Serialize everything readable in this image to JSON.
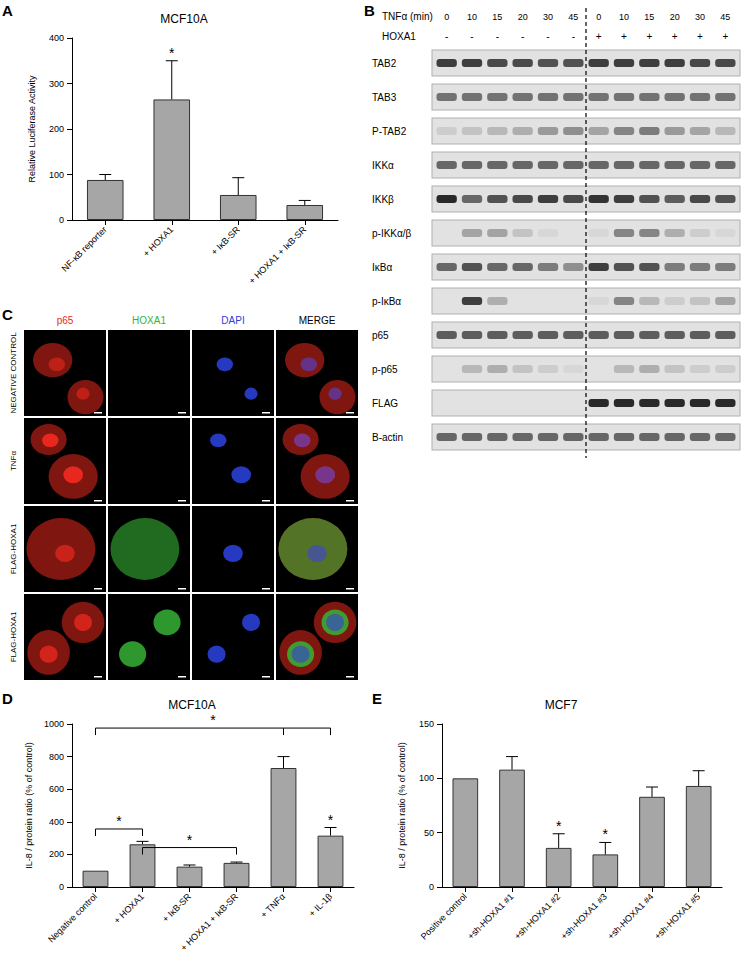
{
  "chart_data": [
    {
      "panel": "A",
      "type": "bar",
      "title": "MCF10A",
      "y_label": "Relative Luciferase Activity",
      "categories": [
        "NF-κB reporter",
        "+ HOXA1",
        "+ IκB-SR",
        "+ HOXA1 + IκB-SR"
      ],
      "values": [
        88,
        265,
        55,
        33
      ],
      "errors": [
        12,
        85,
        38,
        10
      ],
      "color": "#a6a6a6",
      "ylim": [
        0,
        400
      ],
      "yticks": [
        0,
        100,
        200,
        300,
        400
      ],
      "annotations": [
        {
          "category": "+ HOXA1",
          "text": "*"
        }
      ]
    },
    {
      "panel": "D",
      "type": "bar",
      "title": "MCF10A",
      "y_label": "IL-8 / protein ratio (% of control)",
      "categories": [
        "Negative control",
        "+ HOXA1",
        "+ IκB-SR",
        "+ HOXA1 + IκB-SR",
        "+ TNFα",
        "+ IL-1β"
      ],
      "values": [
        100,
        262,
        125,
        148,
        730,
        315
      ],
      "errors": [
        0,
        18,
        10,
        5,
        70,
        50
      ],
      "color": "#a6a6a6",
      "ylim": [
        0,
        1000
      ],
      "yticks": [
        0,
        200,
        400,
        600,
        800,
        1000
      ],
      "brackets": [
        {
          "categories": [
            "Negative control",
            "+ TNFα",
            "+ IL-1β"
          ],
          "y": 975,
          "text": "*"
        },
        {
          "categories": [
            "Negative control",
            "+ HOXA1"
          ],
          "y": 356,
          "text": "*"
        },
        {
          "categories": [
            "+ HOXA1",
            "+ HOXA1 + IκB-SR"
          ],
          "y": 242,
          "text": "*"
        }
      ],
      "annotations": [
        {
          "category": "+ IL-1β",
          "text": "*"
        }
      ]
    },
    {
      "panel": "E",
      "type": "bar",
      "title": "MCF7",
      "y_label": "IL-8 / protein ratio (% of control)",
      "categories": [
        "Positive control",
        "+sh-HOXA1 #1",
        "+sh-HOXA1 #2",
        "+sh-HOXA1 #3",
        "+sh-HOXA1 #4",
        "+sh-HOXA1 #5"
      ],
      "values": [
        100,
        108,
        36,
        30,
        83,
        93
      ],
      "errors": [
        0,
        12,
        13,
        11,
        9,
        14
      ],
      "color": "#a6a6a6",
      "ylim": [
        0,
        150
      ],
      "yticks": [
        0,
        50,
        100,
        150
      ],
      "annotations": [
        {
          "category": "+sh-HOXA1 #2",
          "text": "*"
        },
        {
          "category": "+sh-HOXA1 #3",
          "text": "*"
        }
      ]
    }
  ],
  "blot": {
    "panel": "B",
    "time_label": "TNFα (min)",
    "times": [
      0,
      10,
      15,
      20,
      30,
      45,
      0,
      10,
      15,
      20,
      30,
      45
    ],
    "hoxa1_label": "HOXA1",
    "hoxa1": [
      "-",
      "-",
      "-",
      "-",
      "-",
      "-",
      "+",
      "+",
      "+",
      "+",
      "+",
      "+"
    ],
    "rows": [
      {
        "label": "TAB2",
        "bands": [
          0.8,
          0.8,
          0.75,
          0.75,
          0.7,
          0.7,
          0.8,
          0.8,
          0.8,
          0.8,
          0.75,
          0.75
        ]
      },
      {
        "label": "TAB3",
        "bands": [
          0.55,
          0.55,
          0.55,
          0.55,
          0.55,
          0.55,
          0.55,
          0.55,
          0.55,
          0.55,
          0.55,
          0.55
        ]
      },
      {
        "label": "P-TAB2",
        "bands": [
          0.1,
          0.15,
          0.2,
          0.25,
          0.35,
          0.4,
          0.3,
          0.45,
          0.5,
          0.35,
          0.3,
          0.2
        ]
      },
      {
        "label": "IKKα",
        "bands": [
          0.6,
          0.6,
          0.6,
          0.6,
          0.6,
          0.6,
          0.6,
          0.6,
          0.6,
          0.6,
          0.6,
          0.6
        ]
      },
      {
        "label": "IKKβ",
        "bands": [
          0.9,
          0.6,
          0.7,
          0.75,
          0.8,
          0.75,
          0.85,
          0.8,
          0.7,
          0.65,
          0.75,
          0.7
        ]
      },
      {
        "label": "p-IKKα/β",
        "bands": [
          0,
          0.3,
          0.3,
          0.15,
          0.05,
          0,
          0.05,
          0.45,
          0.45,
          0.25,
          0.1,
          0.05
        ]
      },
      {
        "label": "IκBα",
        "bands": [
          0.6,
          0.7,
          0.6,
          0.6,
          0.5,
          0.4,
          0.8,
          0.7,
          0.7,
          0.5,
          0.5,
          0.5
        ]
      },
      {
        "label": "p-IκBα",
        "bands": [
          0,
          0.8,
          0.25,
          0,
          0,
          0,
          0.05,
          0.45,
          0.2,
          0.1,
          0.15,
          0.3
        ]
      },
      {
        "label": "p65",
        "bands": [
          0.65,
          0.65,
          0.65,
          0.65,
          0.65,
          0.65,
          0.65,
          0.65,
          0.65,
          0.65,
          0.65,
          0.65
        ]
      },
      {
        "label": "p-p65",
        "bands": [
          0,
          0.2,
          0.25,
          0.15,
          0.1,
          0.05,
          0,
          0.2,
          0.25,
          0.15,
          0.1,
          0.1
        ]
      },
      {
        "label": "FLAG",
        "bands": [
          0,
          0,
          0,
          0,
          0,
          0,
          0.9,
          0.9,
          0.9,
          0.9,
          0.9,
          0.9
        ]
      },
      {
        "label": "B-actin",
        "bands": [
          0.6,
          0.6,
          0.6,
          0.6,
          0.6,
          0.6,
          0.6,
          0.6,
          0.6,
          0.6,
          0.6,
          0.6
        ]
      }
    ]
  },
  "micrograph": {
    "panel": "C",
    "columns": [
      {
        "text": "p65",
        "color": "#e8281e"
      },
      {
        "text": "HOXA1",
        "color": "#36b336"
      },
      {
        "text": "DAPI",
        "color": "#2a3fd6"
      },
      {
        "text": "MERGE",
        "color": "#000000"
      }
    ],
    "rows": [
      "NEGATIVE CONTROL",
      "TNFα",
      "FLAG-HOXA1",
      "FLAG-HOXA1"
    ]
  }
}
